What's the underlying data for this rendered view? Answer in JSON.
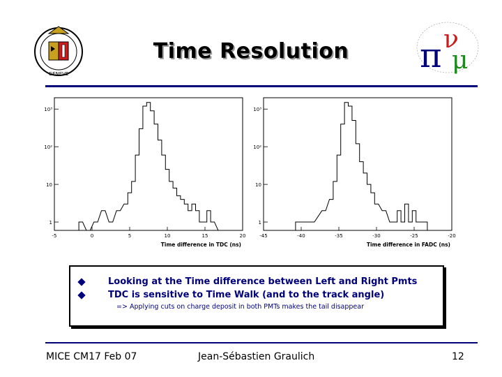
{
  "slide": {
    "title": "Time Resolution",
    "bullets": [
      "Looking at the Time difference between Left and Right Pmts",
      "TDC is sensitive to Time Walk (and to the track angle)"
    ],
    "sub_bullet": "=> Applying cuts on charge deposit in both PMTs makes the tail disappear"
  },
  "footer": {
    "left": "MICE CM17 Feb 07",
    "center": "Jean-Sébastien Graulich",
    "right": "12"
  },
  "logos": {
    "left_text": "GENEVE",
    "right_symbols": [
      "π",
      "ν",
      "μ"
    ]
  },
  "colors": {
    "accent": "#00007a",
    "plot_line": "#000000"
  },
  "chart_data": [
    {
      "type": "line",
      "xlabel": "Time difference in TDC (ns)",
      "xlim": [
        -5,
        20
      ],
      "xticks": [
        "-5",
        "0",
        "5",
        "10",
        "15",
        "20"
      ],
      "yscale": "log",
      "ylim": [
        0.6,
        2000
      ],
      "yticks": [
        "1",
        "10",
        "10²",
        "10³"
      ],
      "x": [
        -1.5,
        -0.5,
        0.5,
        1.5,
        2.5,
        3.5,
        4.5,
        5.0,
        5.5,
        6.0,
        6.5,
        7.0,
        7.5,
        8.0,
        8.5,
        9.0,
        9.5,
        10.0,
        10.5,
        11.0,
        11.5,
        12.0,
        12.5,
        13.0,
        13.5,
        14.0,
        14.5,
        15.0,
        15.5,
        16.0,
        17.0
      ],
      "values": [
        1,
        0.6,
        1,
        2,
        1,
        2,
        3,
        6,
        12,
        60,
        300,
        1200,
        1500,
        900,
        400,
        150,
        60,
        25,
        12,
        8,
        5,
        4,
        3,
        2,
        3,
        2,
        1,
        1,
        2,
        1,
        0.6
      ]
    },
    {
      "type": "line",
      "xlabel": "Time difference in FADC (ns)",
      "xlim": [
        -45,
        -20
      ],
      "xticks": [
        "-45",
        "-40",
        "-35",
        "-30",
        "-25",
        "-20"
      ],
      "yscale": "log",
      "ylim": [
        0.6,
        2000
      ],
      "yticks": [
        "1",
        "10",
        "10²",
        "10³"
      ],
      "x": [
        -40.5,
        -38.5,
        -37.0,
        -36.0,
        -35.5,
        -35.0,
        -34.5,
        -34.0,
        -33.5,
        -33.0,
        -32.5,
        -32.0,
        -31.5,
        -31.0,
        -30.5,
        -30.0,
        -29.0,
        -28.0,
        -27.5,
        -27.0,
        -26.5,
        -26.0,
        -25.5,
        -25.0,
        -24.5,
        -23.5
      ],
      "values": [
        1,
        1,
        2,
        4,
        12,
        60,
        400,
        1500,
        1200,
        500,
        120,
        40,
        20,
        10,
        6,
        3,
        2,
        1,
        1,
        2,
        1,
        3,
        1,
        2,
        1,
        1
      ]
    }
  ]
}
